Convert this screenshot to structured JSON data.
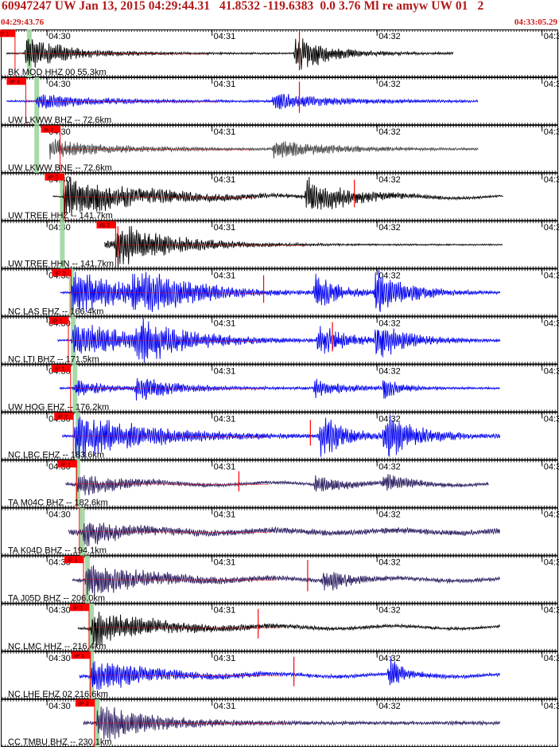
{
  "header": {
    "title": "60947247 UW Jan 13, 2015 04:29:44.31   41.8532 -119.6383  0.0 3.76 Ml re amyw UW 01   2",
    "start_time": "04:29:43.76",
    "end_time": "04:33:05.29"
  },
  "chart_data": {
    "type": "line",
    "title": "60947247 UW Jan 13, 2015 04:29:44.31   41.8532 -119.6383  0.0 3.76 Ml re amyw UW 01   2",
    "x_start": "04:29:43.76",
    "x_end": "04:33:05.29",
    "time_ticks": [
      {
        "label": "04:30",
        "sec": 16.24
      },
      {
        "label": "04:31",
        "sec": 76.24
      },
      {
        "label": "04:32",
        "sec": 136.24
      },
      {
        "label": "04:3",
        "sec": 196.24
      }
    ],
    "colors": {
      "black": "#000000",
      "blue": "#0000ee",
      "gray": "#444444",
      "purple": "#2a1a5e",
      "pick": "#ff0000",
      "marker": "#9fd69f"
    },
    "channels": [
      {
        "label": "BK MOD HHZ 00 55.3km",
        "color": "black",
        "pick_label": "iP 1",
        "pick_s": 4.6,
        "theo_s": 9.8,
        "dur_s": 164.0,
        "events": [
          [
            8,
            16,
            0.75,
            0.95
          ],
          [
            106,
            20,
            0.9,
            0.6
          ]
        ],
        "red": [
          [
            108,
            0.95
          ]
        ],
        "noise": 0.04,
        "trend": false
      },
      {
        "label": "UW LKWW BHZ -- 72.6km",
        "color": "blue",
        "pick_label": "iP 1",
        "pick_s": 8.5,
        "theo_s": 12.5,
        "dur_s": 173.0,
        "events": [
          [
            12,
            24,
            0.35,
            0.9
          ],
          [
            98,
            40,
            0.35,
            0.55
          ]
        ],
        "red": [
          [
            108,
            0.85
          ]
        ],
        "noise": 0.04,
        "trend": false
      },
      {
        "label": "UW LKWW BNE -- 72.6km",
        "color": "gray",
        "pick_label": "is 1",
        "pick_s": 21.0,
        "theo_s": 12.5,
        "dur_s": 173.0,
        "events": [
          [
            12,
            26,
            0.5,
            0.9
          ],
          [
            98,
            40,
            0.4,
            0.5
          ]
        ],
        "red": [],
        "noise": 0.04,
        "trend": false
      },
      {
        "label": "UW TREE HHZ -- 141.7km",
        "color": "black",
        "pick_label": "iP 2",
        "pick_s": 22.4,
        "theo_s": 21.8,
        "dur_s": 182.0,
        "events": [
          [
            22,
            60,
            0.9,
            0.5
          ],
          [
            110,
            40,
            0.85,
            0.4
          ]
        ],
        "red": [
          [
            128,
            0.75
          ]
        ],
        "noise": 0.03,
        "trend": true
      },
      {
        "label": "UW TREE HHN -- 141.7km",
        "color": "black",
        "pick_label": "iS 2",
        "pick_s": 41.2,
        "theo_s": 21.8,
        "dur_s": 182.0,
        "events": [
          [
            22,
            60,
            0.3,
            0.4
          ],
          [
            41,
            40,
            0.85,
            0.5
          ]
        ],
        "red": [
          [
            42,
            0.8
          ]
        ],
        "noise": 0.03,
        "trend": false
      },
      {
        "label": "NC LAS EHZ -- 166.4km",
        "color": "blue",
        "pick_label": "iP 1",
        "pick_s": 25.0,
        "theo_s": 25.1,
        "dur_s": 181.0,
        "events": [
          [
            25,
            45,
            1.0,
            0.5
          ],
          [
            47,
            45,
            1.0,
            0.4
          ],
          [
            113,
            20,
            0.85,
            0.4
          ],
          [
            135,
            30,
            1.0,
            0.4
          ]
        ],
        "red": [
          [
            95,
            0.75
          ]
        ],
        "noise": 0.04,
        "trend": false
      },
      {
        "label": "NC LTI BHZ -- 171.5km",
        "color": "blue",
        "pick_label": "iP 1",
        "pick_s": 24.0,
        "theo_s": 25.8,
        "dur_s": 181.0,
        "events": [
          [
            25,
            55,
            0.8,
            0.45
          ],
          [
            48,
            40,
            0.9,
            0.4
          ],
          [
            114,
            25,
            0.7,
            0.4
          ],
          [
            135,
            30,
            0.8,
            0.4
          ]
        ],
        "red": [
          [
            120,
            0.8
          ]
        ],
        "noise": 0.04,
        "trend": false
      },
      {
        "label": "UW HOG EHZ -- 176.2km",
        "color": "blue",
        "pick_label": "iP 1",
        "pick_s": 24.8,
        "theo_s": 26.4,
        "dur_s": 181.0,
        "events": [
          [
            26,
            20,
            0.35,
            0.6
          ],
          [
            48,
            30,
            0.55,
            0.45
          ],
          [
            113,
            20,
            0.4,
            0.5
          ],
          [
            138,
            10,
            0.6,
            0.5
          ]
        ],
        "red": [],
        "noise": 0.05,
        "trend": false
      },
      {
        "label": "NC LBC EHZ -- 183.6km",
        "color": "blue",
        "pick_label": "iP 2",
        "pick_s": 25.8,
        "theo_s": 27.5,
        "dur_s": 181.0,
        "events": [
          [
            26,
            70,
            1.0,
            0.4
          ],
          [
            115,
            20,
            1.0,
            0.45
          ],
          [
            138,
            30,
            1.0,
            0.4
          ]
        ],
        "red": [
          [
            112,
            0.7
          ]
        ],
        "noise": 0.05,
        "trend": false
      },
      {
        "label": "TA M04C BHZ -- 182.6km",
        "color": "purple",
        "pick_label": "iP 1",
        "pick_s": 27.0,
        "theo_s": 27.4,
        "dur_s": 177.0,
        "events": [
          [
            27,
            70,
            0.45,
            0.25
          ],
          [
            113,
            20,
            0.4,
            0.5
          ],
          [
            138,
            20,
            0.35,
            0.5
          ]
        ],
        "red": [
          [
            86,
            0.55
          ]
        ],
        "noise": 0.06,
        "trend": true
      },
      {
        "label": "TA K04D BHZ -- 194.1km",
        "color": "purple",
        "pick_label": "",
        "pick_s": 28.0,
        "theo_s": 29.1,
        "dur_s": 181.0,
        "events": [
          [
            29,
            80,
            0.5,
            0.2
          ]
        ],
        "red": [],
        "noise": 0.12,
        "trend": true
      },
      {
        "label": "TA J05D BHZ -- 206.0km",
        "color": "purple",
        "pick_label": "iP 1",
        "pick_s": 29.5,
        "theo_s": 30.9,
        "dur_s": 181.0,
        "events": [
          [
            30,
            70,
            0.85,
            0.3
          ],
          [
            116,
            20,
            0.5,
            0.4
          ]
        ],
        "red": [
          [
            111,
            0.85
          ]
        ],
        "noise": 0.08,
        "trend": true
      },
      {
        "label": "NC LMC HHZ -- 216.4km",
        "color": "black",
        "pick_label": "iP 1",
        "pick_s": 31.5,
        "theo_s": 32.4,
        "dur_s": 181.0,
        "events": [
          [
            32,
            90,
            0.8,
            0.25
          ]
        ],
        "red": [
          [
            93,
            0.8
          ]
        ],
        "noise": 0.06,
        "trend": true
      },
      {
        "label": "NC LHE EHZ 02 216.6km",
        "color": "blue",
        "pick_label": "iP 1",
        "pick_s": 32.0,
        "theo_s": 32.4,
        "dur_s": 181.0,
        "events": [
          [
            32,
            80,
            0.75,
            0.25
          ],
          [
            140,
            10,
            0.9,
            0.5
          ]
        ],
        "red": [
          [
            106,
            0.8
          ]
        ],
        "noise": 0.07,
        "trend": true
      },
      {
        "label": "CC TMBU BHZ -- 230.1km",
        "color": "purple",
        "pick_label": "iP 2",
        "pick_s": 33.5,
        "theo_s": 34.5,
        "dur_s": 181.0,
        "events": [
          [
            34,
            100,
            0.85,
            0.2
          ]
        ],
        "red": [],
        "noise": 0.07,
        "trend": false
      }
    ]
  }
}
